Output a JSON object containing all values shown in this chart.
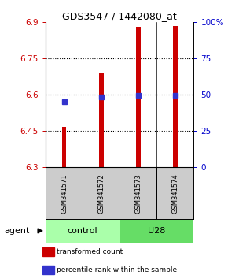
{
  "title": "GDS3547 / 1442080_at",
  "samples": [
    "GSM341571",
    "GSM341572",
    "GSM341573",
    "GSM341574"
  ],
  "red_values": [
    6.467,
    6.693,
    6.883,
    6.885
  ],
  "blue_values": [
    6.573,
    6.593,
    6.597,
    6.597
  ],
  "ymin": 6.3,
  "ymax": 6.9,
  "yticks_left": [
    6.3,
    6.45,
    6.6,
    6.75,
    6.9
  ],
  "yticks_right_vals": [
    0,
    25,
    50,
    75,
    100
  ],
  "yticks_right_labels": [
    "0",
    "25",
    "50",
    "75",
    "100%"
  ],
  "grid_vals": [
    6.45,
    6.6,
    6.75
  ],
  "bar_width": 0.12,
  "bar_color": "#cc0000",
  "dot_color": "#3333cc",
  "control_color": "#aaffaa",
  "u28_color": "#66dd66",
  "sample_box_color": "#cccccc",
  "legend_items": [
    {
      "color": "#cc0000",
      "label": "transformed count"
    },
    {
      "color": "#3333cc",
      "label": "percentile rank within the sample"
    }
  ]
}
